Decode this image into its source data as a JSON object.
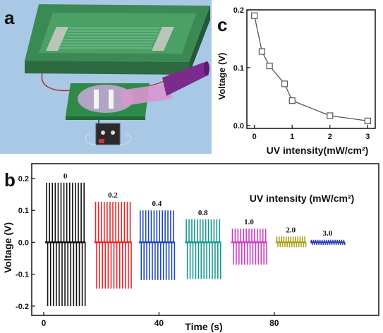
{
  "panels": {
    "a": {
      "letter": "a"
    },
    "b": {
      "letter": "b"
    },
    "c": {
      "letter": "c"
    }
  },
  "chart_data": [
    {
      "panel": "c",
      "type": "line",
      "xlabel": "UV intensity(mW/cm²)",
      "ylabel": "Voltage (V)",
      "x": [
        0,
        0.2,
        0.4,
        0.8,
        1.0,
        2.0,
        3.0
      ],
      "y": [
        0.19,
        0.128,
        0.103,
        0.072,
        0.043,
        0.017,
        0.008
      ],
      "xlim": [
        -0.2,
        3.2
      ],
      "ylim": [
        -0.005,
        0.2
      ],
      "xticks": [
        "0",
        "1",
        "2",
        "3"
      ],
      "yticks": [
        "0.0",
        "0.1",
        "0.2"
      ],
      "marker": "open-square",
      "color": "#555555"
    },
    {
      "panel": "b",
      "type": "line",
      "xlabel": "Time (s)",
      "ylabel": "Voltage (V)",
      "legend_title": "UV intensity (mW/cm²)",
      "xlim": [
        0,
        100
      ],
      "ylim": [
        -0.22,
        0.22
      ],
      "xticks": [
        "0",
        "40",
        "80"
      ],
      "yticks": [
        "0.2",
        "0.1",
        "0.0",
        "-0.1",
        "-0.2"
      ],
      "series": [
        {
          "name": "0",
          "color": "#111111",
          "t_start": 0.5,
          "t_end": 14.5,
          "pulses": 14,
          "pos": 0.187,
          "neg": -0.2
        },
        {
          "name": "0.2",
          "color": "#e8262a",
          "t_start": 17.5,
          "t_end": 30.5,
          "pulses": 13,
          "pos": 0.127,
          "neg": -0.145
        },
        {
          "name": "0.4",
          "color": "#1f48b8",
          "t_start": 33,
          "t_end": 45.5,
          "pulses": 13,
          "pos": 0.1,
          "neg": -0.118
        },
        {
          "name": "0.8",
          "color": "#169a8e",
          "t_start": 49,
          "t_end": 61.5,
          "pulses": 13,
          "pos": 0.072,
          "neg": -0.115
        },
        {
          "name": "1.0",
          "color": "#d238c8",
          "t_start": 65,
          "t_end": 77.5,
          "pulses": 13,
          "pos": 0.043,
          "neg": -0.07
        },
        {
          "name": "2.0",
          "color": "#a8a21a",
          "t_start": 80.5,
          "t_end": 91,
          "pulses": 13,
          "pos": 0.018,
          "neg": -0.015
        },
        {
          "name": "3.0",
          "color": "#2a3cb6",
          "t_start": 92.5,
          "t_end": 104.5,
          "pulses": 16,
          "pos": 0.008,
          "neg": -0.008
        }
      ]
    }
  ]
}
